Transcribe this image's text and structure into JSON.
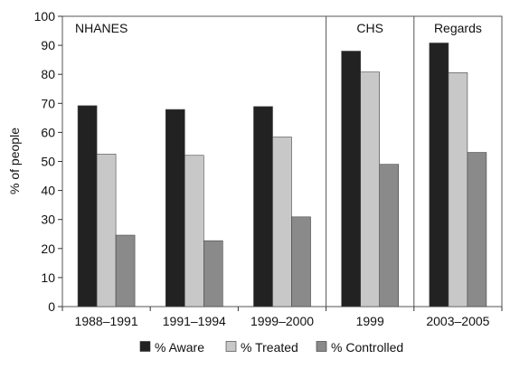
{
  "chart_data": {
    "type": "bar",
    "title": "",
    "xlabel": "",
    "ylabel": "% of people",
    "ylim": [
      0,
      100
    ],
    "yticks": [
      0,
      10,
      20,
      30,
      40,
      50,
      60,
      70,
      80,
      90,
      100
    ],
    "categories": [
      "1988–1991",
      "1991–1994",
      "1999–2000",
      "1999",
      "2003–2005"
    ],
    "groups": [
      {
        "label": "NHANES",
        "categories": [
          0,
          1,
          2
        ]
      },
      {
        "label": "CHS",
        "categories": [
          3
        ]
      },
      {
        "label": "Regards",
        "categories": [
          4
        ]
      }
    ],
    "series": [
      {
        "name": "% Aware",
        "color": "#222222",
        "values": [
          69.2,
          67.9,
          68.9,
          88.0,
          90.8
        ]
      },
      {
        "name": "% Treated",
        "color": "#c8c8c8",
        "values": [
          52.5,
          52.1,
          58.4,
          80.8,
          80.6
        ]
      },
      {
        "name": "% Controlled",
        "color": "#8a8a8a",
        "values": [
          24.6,
          22.7,
          30.9,
          49.0,
          53.1
        ]
      }
    ],
    "legend_position": "bottom",
    "grid": false
  }
}
